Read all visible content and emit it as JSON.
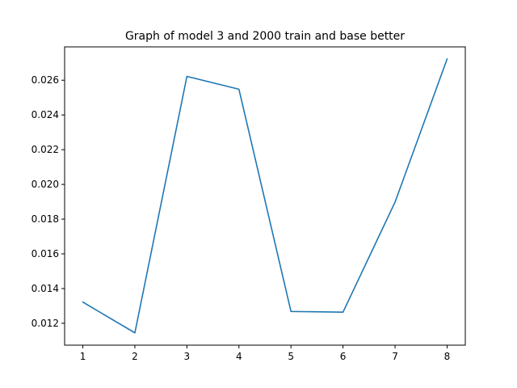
{
  "chart_data": {
    "type": "line",
    "title": "Graph of model 3 and 2000 train and base better",
    "xlabel": "",
    "ylabel": "",
    "x": [
      1,
      2,
      3,
      4,
      5,
      6,
      7,
      8
    ],
    "series": [
      {
        "color": "#1f77b4",
        "values": [
          0.01322,
          0.01145,
          0.02622,
          0.02548,
          0.01268,
          0.01264,
          0.01898,
          0.02722
        ]
      }
    ],
    "xlim": [
      0.65,
      8.35
    ],
    "ylim": [
      0.01074,
      0.02792
    ],
    "xticks": [
      1,
      2,
      3,
      4,
      5,
      6,
      7,
      8
    ],
    "yticks": [
      0.012,
      0.014,
      0.016,
      0.018,
      0.02,
      0.022,
      0.024,
      0.026
    ],
    "ytick_labels": [
      "0.012",
      "0.014",
      "0.016",
      "0.018",
      "0.020",
      "0.022",
      "0.024",
      "0.026"
    ],
    "grid": false,
    "legend": "none"
  }
}
